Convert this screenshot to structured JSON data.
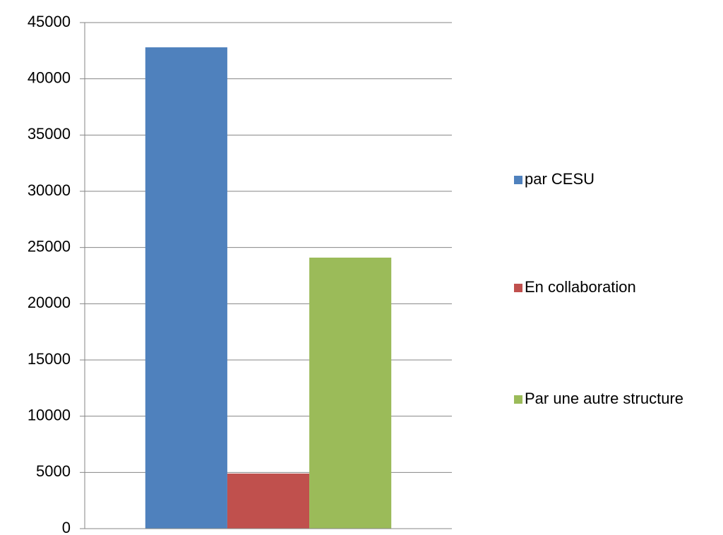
{
  "chart_data": {
    "type": "bar",
    "categories": [
      null
    ],
    "series": [
      {
        "name": "par CESU",
        "color": "#4f81bd",
        "values": [
          42800
        ]
      },
      {
        "name": "En collaboration",
        "color": "#c0504d",
        "values": [
          4900
        ]
      },
      {
        "name": "Par une autre structure",
        "color": "#9bbb59",
        "values": [
          24100
        ]
      }
    ],
    "ylim": [
      0,
      45000
    ],
    "yticks": [
      0,
      5000,
      10000,
      15000,
      20000,
      25000,
      30000,
      35000,
      40000,
      45000
    ],
    "grid": true,
    "legend": "right"
  }
}
